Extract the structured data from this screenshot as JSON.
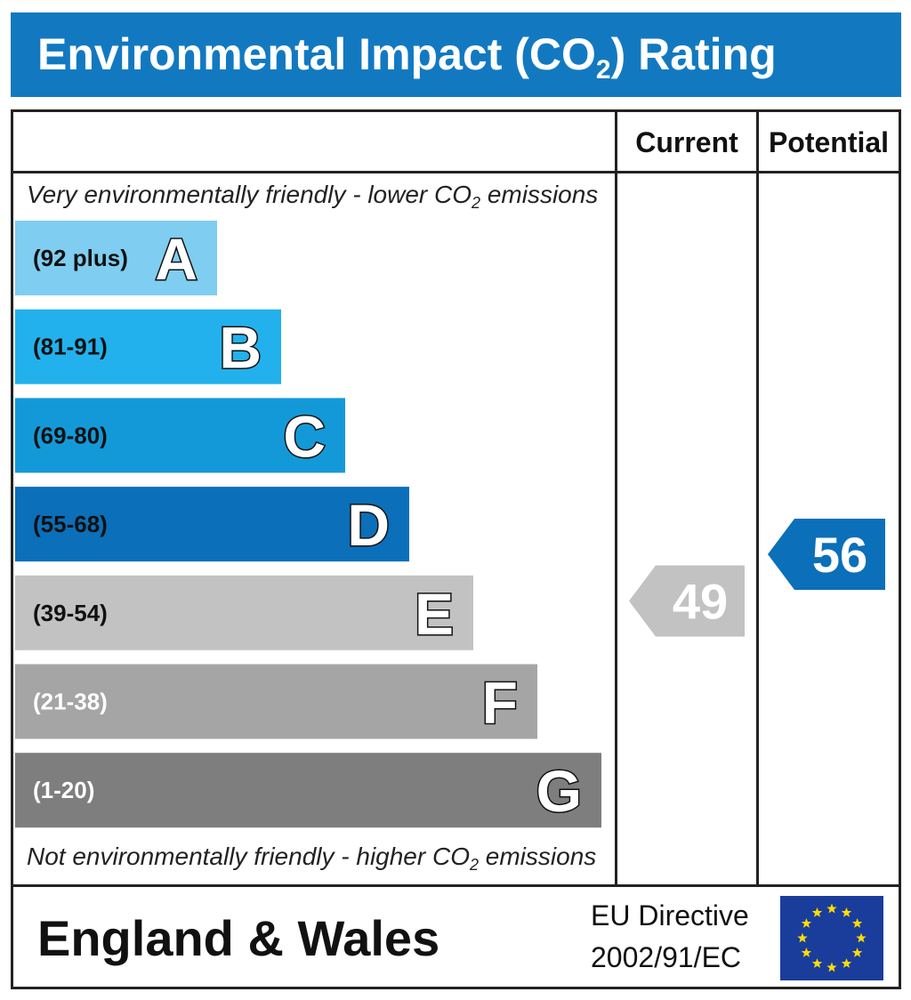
{
  "title": "Environmental Impact (CO",
  "title_sub": "2",
  "title_end": ") Rating",
  "columns": {
    "current": "Current",
    "potential": "Potential"
  },
  "top_note": {
    "pre": "Very environmentally friendly - lower CO",
    "sub": "2",
    "post": " emissions"
  },
  "bottom_note": {
    "pre": "Not environmentally friendly - higher CO",
    "sub": "2",
    "post": " emissions"
  },
  "footer": {
    "region": "England & Wales",
    "directive_line1": "EU Directive",
    "directive_line2": "2002/91/EC"
  },
  "chart_data": {
    "type": "bar",
    "title": "Environmental Impact (CO2) Rating",
    "bands": [
      {
        "letter": "A",
        "range": "(92 plus)",
        "min": 92,
        "max": 100,
        "color": "#7fcdf0",
        "range_text_color": "#111111"
      },
      {
        "letter": "B",
        "range": "(81-91)",
        "min": 81,
        "max": 91,
        "color": "#22b1ec",
        "range_text_color": "#111111"
      },
      {
        "letter": "C",
        "range": "(69-80)",
        "min": 69,
        "max": 80,
        "color": "#1499d8",
        "range_text_color": "#111111"
      },
      {
        "letter": "D",
        "range": "(55-68)",
        "min": 55,
        "max": 68,
        "color": "#0b6fb9",
        "range_text_color": "#111111"
      },
      {
        "letter": "E",
        "range": "(39-54)",
        "min": 39,
        "max": 54,
        "color": "#c2c2c2",
        "range_text_color": "#111111"
      },
      {
        "letter": "F",
        "range": "(21-38)",
        "min": 21,
        "max": 38,
        "color": "#a5a5a5",
        "range_text_color": "#ffffff"
      },
      {
        "letter": "G",
        "range": "(1-20)",
        "min": 1,
        "max": 20,
        "color": "#7e7e7e",
        "range_text_color": "#ffffff"
      }
    ],
    "current": {
      "value": 49,
      "band": "E",
      "color": "#c2c2c2"
    },
    "potential": {
      "value": 56,
      "band": "D",
      "color": "#0b6fb9"
    }
  }
}
